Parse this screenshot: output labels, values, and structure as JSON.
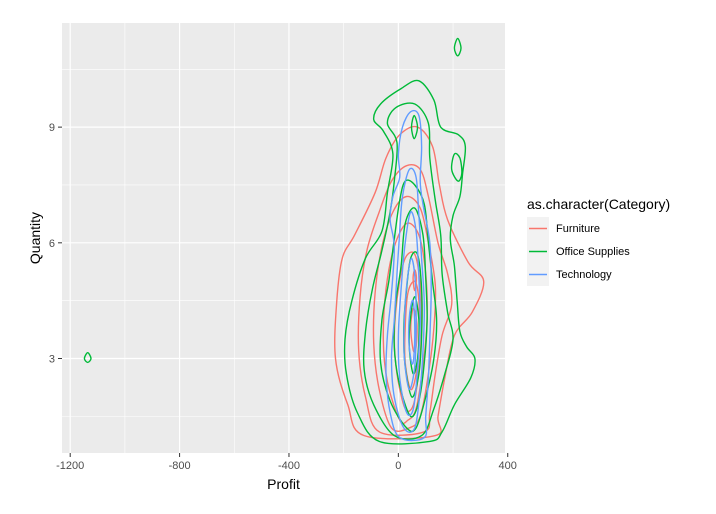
{
  "chart_data": {
    "type": "contour",
    "xlabel": "Profit",
    "ylabel": "Quantity",
    "xlim": [
      -1230,
      390
    ],
    "ylim": [
      0.55,
      11.7
    ],
    "x_ticks": [
      -1200,
      -800,
      -400,
      0,
      400
    ],
    "y_ticks": [
      3,
      6,
      9
    ],
    "x_tick_labels": [
      "-1200",
      "-800",
      "-400",
      "0",
      "400"
    ],
    "y_tick_labels": [
      "3",
      "6",
      "9"
    ],
    "x_minor_ticks": [
      -1000,
      -600,
      -200,
      200
    ],
    "y_minor_ticks": [
      1.5,
      4.5,
      7.5,
      10.5
    ],
    "grid": true,
    "legend": {
      "title": "as.character(Category)",
      "position": "right"
    },
    "series": [
      {
        "name": "Furniture",
        "color": "#F8766D",
        "contours": [
          [
            [
              -125,
              1.0
            ],
            [
              -185,
              1.8
            ],
            [
              -230,
              3.0
            ],
            [
              -225,
              4.5
            ],
            [
              -205,
              5.6
            ],
            [
              -160,
              6.2
            ],
            [
              -85,
              7.3
            ],
            [
              -45,
              8.2
            ],
            [
              5,
              8.8
            ],
            [
              70,
              9.0
            ],
            [
              125,
              8.5
            ],
            [
              150,
              7.5
            ],
            [
              180,
              6.6
            ],
            [
              255,
              5.5
            ],
            [
              312,
              5.0
            ],
            [
              270,
              4.2
            ],
            [
              205,
              3.6
            ],
            [
              170,
              2.5
            ],
            [
              145,
              1.5
            ],
            [
              135,
              1.0
            ]
          ],
          [
            [
              -70,
              1.1
            ],
            [
              -120,
              2.0
            ],
            [
              -145,
              3.2
            ],
            [
              -140,
              4.6
            ],
            [
              -115,
              5.8
            ],
            [
              -70,
              6.8
            ],
            [
              -25,
              7.6
            ],
            [
              30,
              8.0
            ],
            [
              80,
              7.9
            ],
            [
              110,
              7.2
            ],
            [
              145,
              6.0
            ],
            [
              180,
              5.2
            ],
            [
              195,
              4.4
            ],
            [
              160,
              3.6
            ],
            [
              135,
              2.6
            ],
            [
              115,
              1.6
            ],
            [
              95,
              1.1
            ]
          ],
          [
            [
              -25,
              1.2
            ],
            [
              -70,
              2.2
            ],
            [
              -90,
              3.4
            ],
            [
              -85,
              4.7
            ],
            [
              -60,
              5.9
            ],
            [
              -20,
              6.8
            ],
            [
              30,
              7.2
            ],
            [
              80,
              6.9
            ],
            [
              110,
              6.0
            ],
            [
              135,
              4.9
            ],
            [
              130,
              3.8
            ],
            [
              110,
              2.6
            ],
            [
              80,
              1.5
            ],
            [
              40,
              1.2
            ]
          ],
          [
            [
              5,
              1.4
            ],
            [
              -40,
              2.4
            ],
            [
              -55,
              3.5
            ],
            [
              -45,
              4.8
            ],
            [
              -15,
              5.9
            ],
            [
              30,
              6.5
            ],
            [
              75,
              6.2
            ],
            [
              100,
              5.2
            ],
            [
              105,
              4.0
            ],
            [
              90,
              2.8
            ],
            [
              65,
              1.7
            ],
            [
              35,
              1.4
            ]
          ],
          [
            [
              25,
              1.7
            ],
            [
              -5,
              2.6
            ],
            [
              -15,
              3.6
            ],
            [
              0,
              4.8
            ],
            [
              25,
              5.6
            ],
            [
              60,
              5.7
            ],
            [
              80,
              4.9
            ],
            [
              85,
              3.8
            ],
            [
              75,
              2.7
            ],
            [
              55,
              1.8
            ]
          ],
          [
            [
              45,
              2.2
            ],
            [
              25,
              2.9
            ],
            [
              25,
              3.8
            ],
            [
              35,
              4.7
            ],
            [
              60,
              5.0
            ],
            [
              75,
              4.5
            ],
            [
              75,
              3.5
            ],
            [
              65,
              2.6
            ]
          ],
          [
            [
              55,
              3.2
            ],
            [
              45,
              3.8
            ],
            [
              55,
              4.3
            ],
            [
              68,
              3.9
            ],
            [
              65,
              3.3
            ]
          ],
          [
            [
              58,
              4.8
            ],
            [
              54,
              5.1
            ],
            [
              60,
              5.3
            ],
            [
              66,
              5.1
            ],
            [
              62,
              4.8
            ]
          ]
        ]
      },
      {
        "name": "Office Supplies",
        "color": "#00BA38",
        "contours": [
          [
            [
              -1136,
              2.9
            ],
            [
              -1148,
              3.0
            ],
            [
              -1136,
              3.15
            ],
            [
              -1124,
              3.0
            ]
          ],
          [
            [
              217,
              10.85
            ],
            [
              205,
              11.05
            ],
            [
              217,
              11.3
            ],
            [
              229,
              11.05
            ]
          ],
          [
            [
              -70,
              0.85
            ],
            [
              -150,
              1.6
            ],
            [
              -190,
              2.6
            ],
            [
              -195,
              3.5
            ],
            [
              -170,
              4.5
            ],
            [
              -120,
              5.6
            ],
            [
              -60,
              6.3
            ],
            [
              -40,
              7.3
            ],
            [
              -20,
              8.3
            ],
            [
              -55,
              8.9
            ],
            [
              -90,
              9.2
            ],
            [
              -65,
              9.6
            ],
            [
              10,
              10.0
            ],
            [
              75,
              10.2
            ],
            [
              130,
              9.7
            ],
            [
              155,
              9.0
            ],
            [
              220,
              8.8
            ],
            [
              245,
              8.5
            ],
            [
              235,
              7.8
            ],
            [
              225,
              7.2
            ],
            [
              200,
              6.7
            ],
            [
              190,
              6.1
            ],
            [
              205,
              5.4
            ],
            [
              215,
              4.5
            ],
            [
              225,
              3.7
            ],
            [
              250,
              3.3
            ],
            [
              280,
              3.0
            ],
            [
              265,
              2.5
            ],
            [
              205,
              1.8
            ],
            [
              160,
              1.1
            ],
            [
              115,
              0.85
            ]
          ],
          [
            [
              -15,
              1.0
            ],
            [
              -90,
              1.8
            ],
            [
              -125,
              2.7
            ],
            [
              -120,
              3.7
            ],
            [
              -95,
              4.8
            ],
            [
              -60,
              5.8
            ],
            [
              -30,
              6.8
            ],
            [
              -15,
              7.6
            ],
            [
              -5,
              8.6
            ],
            [
              -40,
              9.1
            ],
            [
              -10,
              9.5
            ],
            [
              60,
              9.6
            ],
            [
              110,
              9.1
            ],
            [
              115,
              8.2
            ],
            [
              135,
              7.1
            ],
            [
              155,
              6.2
            ],
            [
              160,
              5.2
            ],
            [
              180,
              4.2
            ],
            [
              200,
              3.5
            ],
            [
              170,
              2.6
            ],
            [
              130,
              1.7
            ],
            [
              85,
              1.0
            ]
          ],
          [
            [
              30,
              1.2
            ],
            [
              -30,
              1.9
            ],
            [
              -65,
              2.9
            ],
            [
              -60,
              4.0
            ],
            [
              -35,
              5.0
            ],
            [
              -15,
              6.1
            ],
            [
              5,
              7.1
            ],
            [
              25,
              7.6
            ],
            [
              60,
              7.5
            ],
            [
              95,
              7.0
            ],
            [
              110,
              6.0
            ],
            [
              125,
              5.0
            ],
            [
              140,
              4.0
            ],
            [
              130,
              3.0
            ],
            [
              100,
              2.0
            ],
            [
              65,
              1.2
            ]
          ],
          [
            [
              45,
              1.5
            ],
            [
              5,
              2.3
            ],
            [
              -15,
              3.3
            ],
            [
              -10,
              4.4
            ],
            [
              10,
              5.4
            ],
            [
              25,
              6.5
            ],
            [
              60,
              6.9
            ],
            [
              90,
              6.2
            ],
            [
              100,
              5.1
            ],
            [
              105,
              4.0
            ],
            [
              95,
              2.9
            ],
            [
              75,
              1.9
            ]
          ],
          [
            [
              50,
              2.0
            ],
            [
              25,
              2.8
            ],
            [
              20,
              3.8
            ],
            [
              30,
              4.8
            ],
            [
              45,
              5.6
            ],
            [
              70,
              5.7
            ],
            [
              85,
              4.8
            ],
            [
              85,
              3.6
            ],
            [
              75,
              2.6
            ]
          ],
          [
            [
              55,
              2.6
            ],
            [
              40,
              3.3
            ],
            [
              45,
              4.1
            ],
            [
              60,
              4.6
            ],
            [
              75,
              4.0
            ],
            [
              72,
              3.1
            ]
          ],
          [
            [
              58,
              8.7
            ],
            [
              48,
              9.0
            ],
            [
              58,
              9.3
            ],
            [
              70,
              9.0
            ]
          ],
          [
            [
              218,
              7.6
            ],
            [
              195,
              7.9
            ],
            [
              205,
              8.3
            ],
            [
              225,
              8.2
            ],
            [
              232,
              7.8
            ]
          ]
        ]
      },
      {
        "name": "Technology",
        "color": "#619CFF",
        "contours": [
          [
            [
              5,
              0.95
            ],
            [
              -30,
              1.6
            ],
            [
              -45,
              2.6
            ],
            [
              -40,
              3.6
            ],
            [
              -25,
              4.7
            ],
            [
              -15,
              5.9
            ],
            [
              -30,
              6.6
            ],
            [
              -20,
              7.2
            ],
            [
              5,
              7.7
            ],
            [
              0,
              8.3
            ],
            [
              15,
              9.0
            ],
            [
              45,
              9.4
            ],
            [
              75,
              9.3
            ],
            [
              85,
              8.5
            ],
            [
              80,
              7.6
            ],
            [
              90,
              7.0
            ],
            [
              115,
              6.0
            ],
            [
              120,
              4.8
            ],
            [
              115,
              3.5
            ],
            [
              110,
              2.5
            ],
            [
              100,
              1.5
            ],
            [
              95,
              0.95
            ]
          ],
          [
            [
              20,
              1.2
            ],
            [
              -15,
              2.0
            ],
            [
              -25,
              3.0
            ],
            [
              -15,
              4.0
            ],
            [
              -5,
              5.2
            ],
            [
              5,
              6.3
            ],
            [
              15,
              7.2
            ],
            [
              40,
              7.9
            ],
            [
              65,
              7.7
            ],
            [
              75,
              6.7
            ],
            [
              85,
              5.6
            ],
            [
              95,
              4.4
            ],
            [
              90,
              3.2
            ],
            [
              80,
              2.2
            ],
            [
              60,
              1.2
            ]
          ],
          [
            [
              30,
              1.6
            ],
            [
              5,
              2.5
            ],
            [
              0,
              3.6
            ],
            [
              10,
              4.8
            ],
            [
              25,
              6.0
            ],
            [
              45,
              6.8
            ],
            [
              65,
              6.3
            ],
            [
              75,
              5.1
            ],
            [
              80,
              3.9
            ],
            [
              70,
              2.7
            ],
            [
              55,
              1.7
            ]
          ],
          [
            [
              40,
              2.2
            ],
            [
              22,
              3.0
            ],
            [
              22,
              4.0
            ],
            [
              32,
              5.0
            ],
            [
              48,
              5.6
            ],
            [
              62,
              5.0
            ],
            [
              65,
              3.9
            ],
            [
              60,
              2.8
            ]
          ],
          [
            [
              48,
              2.9
            ],
            [
              38,
              3.5
            ],
            [
              42,
              4.2
            ],
            [
              54,
              4.5
            ],
            [
              60,
              3.8
            ],
            [
              56,
              3.0
            ]
          ]
        ]
      }
    ]
  }
}
